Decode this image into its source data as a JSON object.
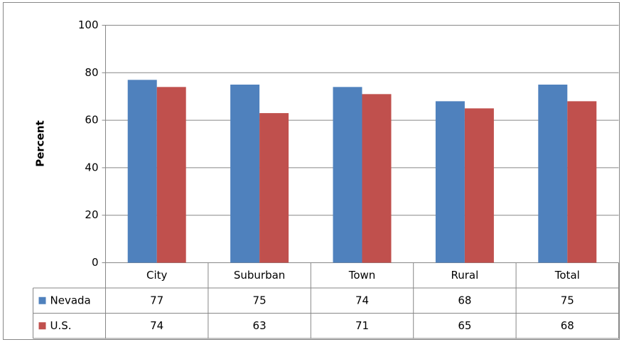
{
  "chart_data": {
    "type": "bar",
    "y_label": "Percent",
    "categories": [
      "City",
      "Suburban",
      "Town",
      "Rural",
      "Total"
    ],
    "series": [
      {
        "name": "Nevada",
        "color": "#4f81bd",
        "values": [
          77,
          75,
          74,
          68,
          75
        ]
      },
      {
        "name": "U.S.",
        "color": "#c0504d",
        "values": [
          74,
          63,
          71,
          65,
          68
        ]
      }
    ],
    "ylim": [
      0,
      100
    ],
    "yticks": [
      0,
      20,
      40,
      60,
      80,
      100
    ],
    "grid": true
  }
}
